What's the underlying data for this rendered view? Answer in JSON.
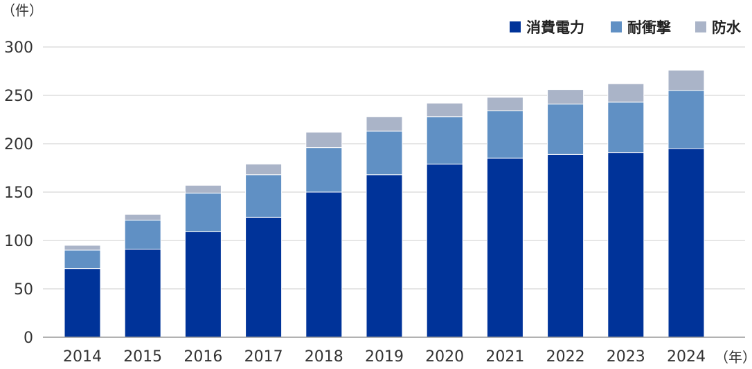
{
  "chart_data": {
    "type": "bar",
    "stacked": true,
    "categories": [
      "2014",
      "2015",
      "2016",
      "2017",
      "2018",
      "2019",
      "2020",
      "2021",
      "2022",
      "2023",
      "2024"
    ],
    "series": [
      {
        "name": "消費電力",
        "color": "#003399",
        "values": [
          71,
          91,
          109,
          124,
          150,
          168,
          179,
          185,
          189,
          191,
          195
        ]
      },
      {
        "name": "耐衝撃",
        "color": "#6090c4",
        "values": [
          19,
          30,
          40,
          44,
          46,
          45,
          49,
          49,
          52,
          52,
          60
        ]
      },
      {
        "name": "防水",
        "color": "#aab4c8",
        "values": [
          5,
          6,
          8,
          11,
          16,
          15,
          14,
          14,
          15,
          19,
          21
        ]
      }
    ],
    "y_ticks": [
      "0",
      "50",
      "100",
      "150",
      "200",
      "250",
      "300"
    ],
    "ylim": [
      0,
      300
    ],
    "y_unit": "（件）",
    "x_unit": "（年）",
    "grid": true,
    "legend_position": "top-right"
  }
}
